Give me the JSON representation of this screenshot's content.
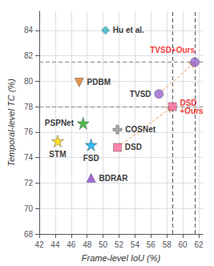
{
  "chart_data": {
    "type": "scatter",
    "xlabel": "Frame-level IoU (%)",
    "ylabel": "Temporal-level TC (%)",
    "xlim": [
      42,
      62.5
    ],
    "ylim": [
      68,
      85.5
    ],
    "xticks": [
      42,
      44,
      46,
      48,
      50,
      52,
      54,
      56,
      58,
      60,
      62
    ],
    "yticks": [
      68,
      70,
      72,
      74,
      76,
      78,
      80,
      82,
      84
    ],
    "grid": true,
    "points": [
      {
        "label": "Hu et al.",
        "x": 50.3,
        "y": 84.0,
        "marker": "diamond",
        "color": "#29B6C8",
        "label_color": "black"
      },
      {
        "label": "PDBM",
        "x": 47.0,
        "y": 79.9,
        "marker": "triangle_down",
        "color": "#E07820",
        "label_color": "black"
      },
      {
        "label": "PSPNet",
        "x": 47.5,
        "y": 76.7,
        "marker": "star",
        "color": "#22AA22",
        "label_color": "black"
      },
      {
        "label": "STM",
        "x": 44.3,
        "y": 75.3,
        "marker": "star",
        "color": "#FFD700",
        "label_color": "black"
      },
      {
        "label": "FSD",
        "x": 48.5,
        "y": 75.0,
        "marker": "star",
        "color": "#00AAEE",
        "label_color": "black"
      },
      {
        "label": "BDRAR",
        "x": 48.5,
        "y": 72.4,
        "marker": "triangle",
        "color": "#8B44CC",
        "label_color": "black"
      },
      {
        "label": "COSNet",
        "x": 51.8,
        "y": 76.2,
        "marker": "plus",
        "color": "#999999",
        "label_color": "black"
      },
      {
        "label": "DSD",
        "x": 51.8,
        "y": 74.8,
        "marker": "square",
        "color": "#FF6699",
        "label_color": "black"
      },
      {
        "label": "TVSD",
        "x": 57.0,
        "y": 79.0,
        "marker": "circle",
        "color": "#9966CC",
        "label_color": "black"
      },
      {
        "label": "TVSD+Ours",
        "x": 61.5,
        "y": 81.5,
        "marker": "circle",
        "color": "#9966CC",
        "label_color": "#EE0000"
      },
      {
        "label": "DSD\n+Ours",
        "x": 58.7,
        "y": 78.0,
        "marker": "square",
        "color": "#FF6699",
        "label_color": "#EE0000"
      }
    ],
    "arrows": [
      {
        "x_start": 51.8,
        "y_start": 74.8,
        "x_end": 58.7,
        "y_end": 78.0,
        "color": "#E08030"
      },
      {
        "x_start": 57.0,
        "y_start": 79.0,
        "x_end": 61.5,
        "y_end": 81.5,
        "color": "#E08030"
      }
    ],
    "hlines": [
      {
        "y": 81.5,
        "color": "#888888"
      },
      {
        "y": 78.0,
        "color": "#888888"
      }
    ],
    "vlines": [
      {
        "x": 58.7,
        "color": "#555555"
      },
      {
        "x": 61.5,
        "color": "#555555"
      }
    ]
  }
}
